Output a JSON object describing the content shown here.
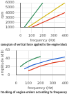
{
  "chart_data": [
    {
      "type": "line",
      "title": "sonogram of vertical force applied to the engine block",
      "x_label": "frequency (Hz)",
      "y_label": "rpm",
      "xlim": [
        0,
        400
      ],
      "xticks": [
        0,
        100,
        200,
        300,
        400
      ],
      "ylim": [
        1000,
        6000
      ],
      "yticks": [
        1000,
        2000,
        3000,
        4000,
        5000,
        6000
      ],
      "grid": true,
      "series": [
        {
          "color": "#2e8b57",
          "x": [
            33,
            67,
            100,
            133,
            167,
            200
          ],
          "values": [
            1000,
            2000,
            3000,
            4000,
            5000,
            6000
          ]
        },
        {
          "color": "#d4b81a",
          "x": [
            67,
            133,
            200,
            267,
            333,
            400
          ],
          "values": [
            1000,
            2000,
            3000,
            4000,
            5000,
            6000
          ]
        },
        {
          "color": "#e03c1f",
          "x": [
            100,
            200,
            300,
            400
          ],
          "values": [
            1000,
            2000,
            3000,
            4000
          ]
        }
      ]
    },
    {
      "type": "line",
      "title": "tracking of engine orders according to frequency",
      "x_label": "frequency (Hz)",
      "y_label": "amplitude (dB)",
      "xlim": [
        0,
        400
      ],
      "xticks": [
        0,
        100,
        200,
        300,
        400
      ],
      "ylim": [
        0,
        60
      ],
      "yticks": [
        0,
        20,
        40,
        60
      ],
      "grid": true,
      "series": [
        {
          "color": "#2e8b57",
          "x": [
            33,
            67,
            100,
            133,
            167,
            200
          ],
          "values": [
            20,
            28,
            34,
            38,
            42,
            45
          ]
        },
        {
          "color": "#1f5fd0",
          "x": [
            67,
            133,
            200,
            267,
            333,
            400
          ],
          "values": [
            15,
            24,
            30,
            36,
            40,
            44
          ]
        },
        {
          "color": "#e03c1f",
          "x": [
            100,
            200,
            300,
            400
          ],
          "values": [
            10,
            22,
            30,
            35
          ]
        }
      ]
    }
  ]
}
